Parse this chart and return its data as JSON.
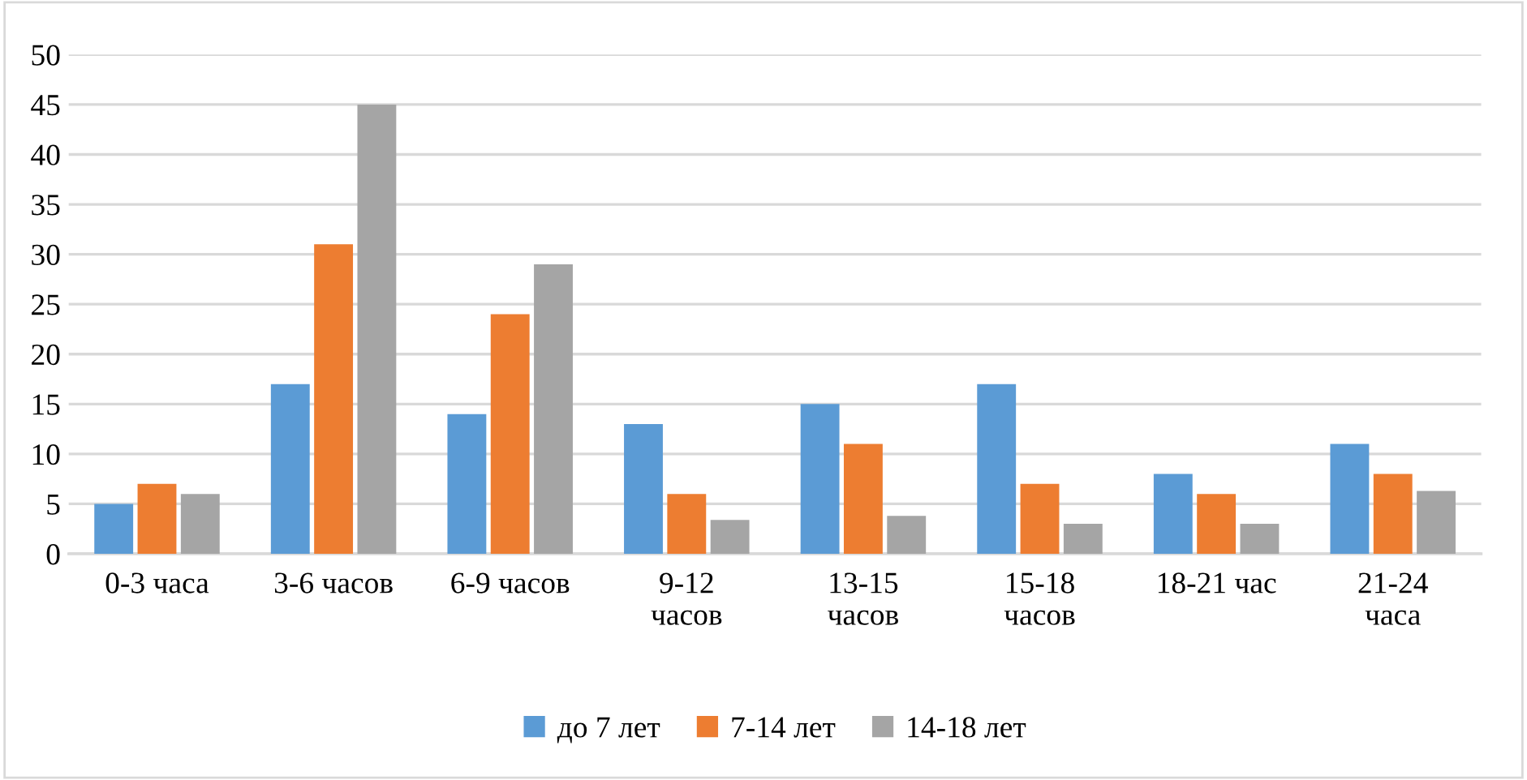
{
  "chart_data": {
    "type": "bar",
    "categories": [
      "0-3 часа",
      "3-6 часов",
      "6-9 часов",
      "9-12\nчасов",
      "13-15\nчасов",
      "15-18\nчасов",
      "18-21 час",
      "21-24\nчаса"
    ],
    "series": [
      {
        "name": "до 7 лет",
        "color": "#5b9bd5",
        "values": [
          5,
          17,
          14,
          13,
          15,
          17,
          8,
          11
        ]
      },
      {
        "name": "7-14 лет",
        "color": "#ed7d31",
        "values": [
          7,
          31,
          24,
          6,
          11,
          7,
          6,
          8
        ]
      },
      {
        "name": "14-18 лет",
        "color": "#a5a5a5",
        "values": [
          6,
          45,
          29,
          3.4,
          3.8,
          3,
          3,
          6.3
        ]
      }
    ],
    "ylim": [
      0,
      50
    ],
    "yticks": [
      0,
      5,
      10,
      15,
      20,
      25,
      30,
      35,
      40,
      45,
      50
    ],
    "grid": "y",
    "legend": "bottom"
  }
}
